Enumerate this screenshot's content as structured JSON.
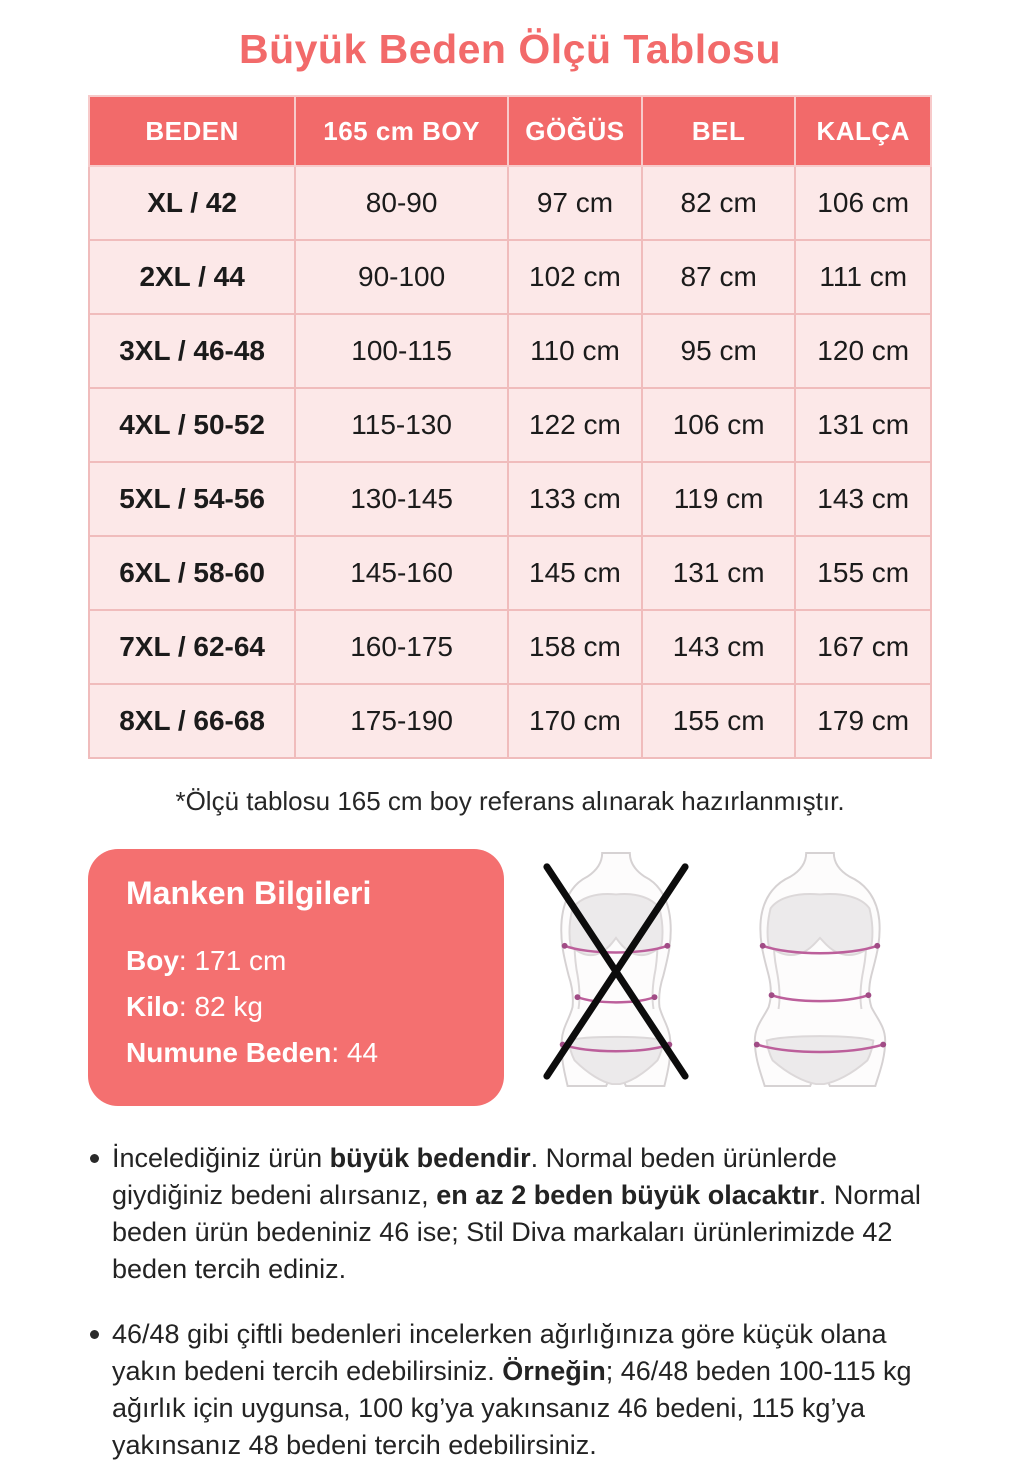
{
  "page": {
    "title": "Büyük Beden Ölçü Tablosu",
    "note": "*Ölçü tablosu 165 cm boy referans alınarak hazırlanmıştır."
  },
  "size_table": {
    "columns": [
      "BEDEN",
      "165 cm BOY",
      "GÖĞÜS",
      "BEL",
      "KALÇA"
    ],
    "rows": [
      [
        "XL / 42",
        "80-90",
        "97 cm",
        "82 cm",
        "106 cm"
      ],
      [
        "2XL / 44",
        "90-100",
        "102 cm",
        "87 cm",
        "111 cm"
      ],
      [
        "3XL / 46-48",
        "100-115",
        "110 cm",
        "95 cm",
        "120 cm"
      ],
      [
        "4XL / 50-52",
        "115-130",
        "122 cm",
        "106 cm",
        "131 cm"
      ],
      [
        "5XL / 54-56",
        "130-145",
        "133 cm",
        "119 cm",
        "143 cm"
      ],
      [
        "6XL / 58-60",
        "145-160",
        "145 cm",
        "131 cm",
        "155 cm"
      ],
      [
        "7XL / 62-64",
        "160-175",
        "158 cm",
        "143 cm",
        "167 cm"
      ],
      [
        "8XL / 66-68",
        "175-190",
        "170 cm",
        "155 cm",
        "179 cm"
      ]
    ]
  },
  "model_info": {
    "title": "Manken Bilgileri",
    "fields": [
      {
        "label": "Boy",
        "value": "171 cm"
      },
      {
        "label": "Kilo",
        "value": "82 kg"
      },
      {
        "label": "Numune Beden",
        "value": "44"
      }
    ]
  },
  "figures": {
    "wrong_icon": "crossed-out-slim-body-silhouette",
    "correct_icon": "plus-size-body-silhouette"
  },
  "notes_list": [
    {
      "segments": [
        {
          "text": "İncelediğiniz ürün ",
          "bold": false
        },
        {
          "text": "büyük bedendir",
          "bold": true
        },
        {
          "text": ". Normal beden ürünlerde giydiğiniz bedeni alırsanız, ",
          "bold": false
        },
        {
          "text": "en az 2 beden büyük olacaktır",
          "bold": true
        },
        {
          "text": ". Normal beden ürün bedeniniz 46 ise; Stil Diva markaları ürünlerimizde 42 beden tercih ediniz.",
          "bold": false
        }
      ]
    },
    {
      "segments": [
        {
          "text": "46/48 gibi çiftli bedenleri incelerken ağırlığınıza göre küçük olana yakın bedeni tercih edebilirsiniz. ",
          "bold": false
        },
        {
          "text": "Örneğin",
          "bold": true
        },
        {
          "text": "; 46/48 beden 100-115 kg ağırlık için uygunsa, 100 kg’ya yakınsanız 46 bedeni, 115 kg’ya yakınsanız 48 bedeni tercih edebilirsiniz.",
          "bold": false
        }
      ]
    }
  ],
  "colors": {
    "accent": "#f26a6a",
    "cell_bg": "#fce8e8",
    "cell_border": "#f0bcbc",
    "measure_line": "#bc5f9b",
    "text": "#1c1c1c"
  }
}
